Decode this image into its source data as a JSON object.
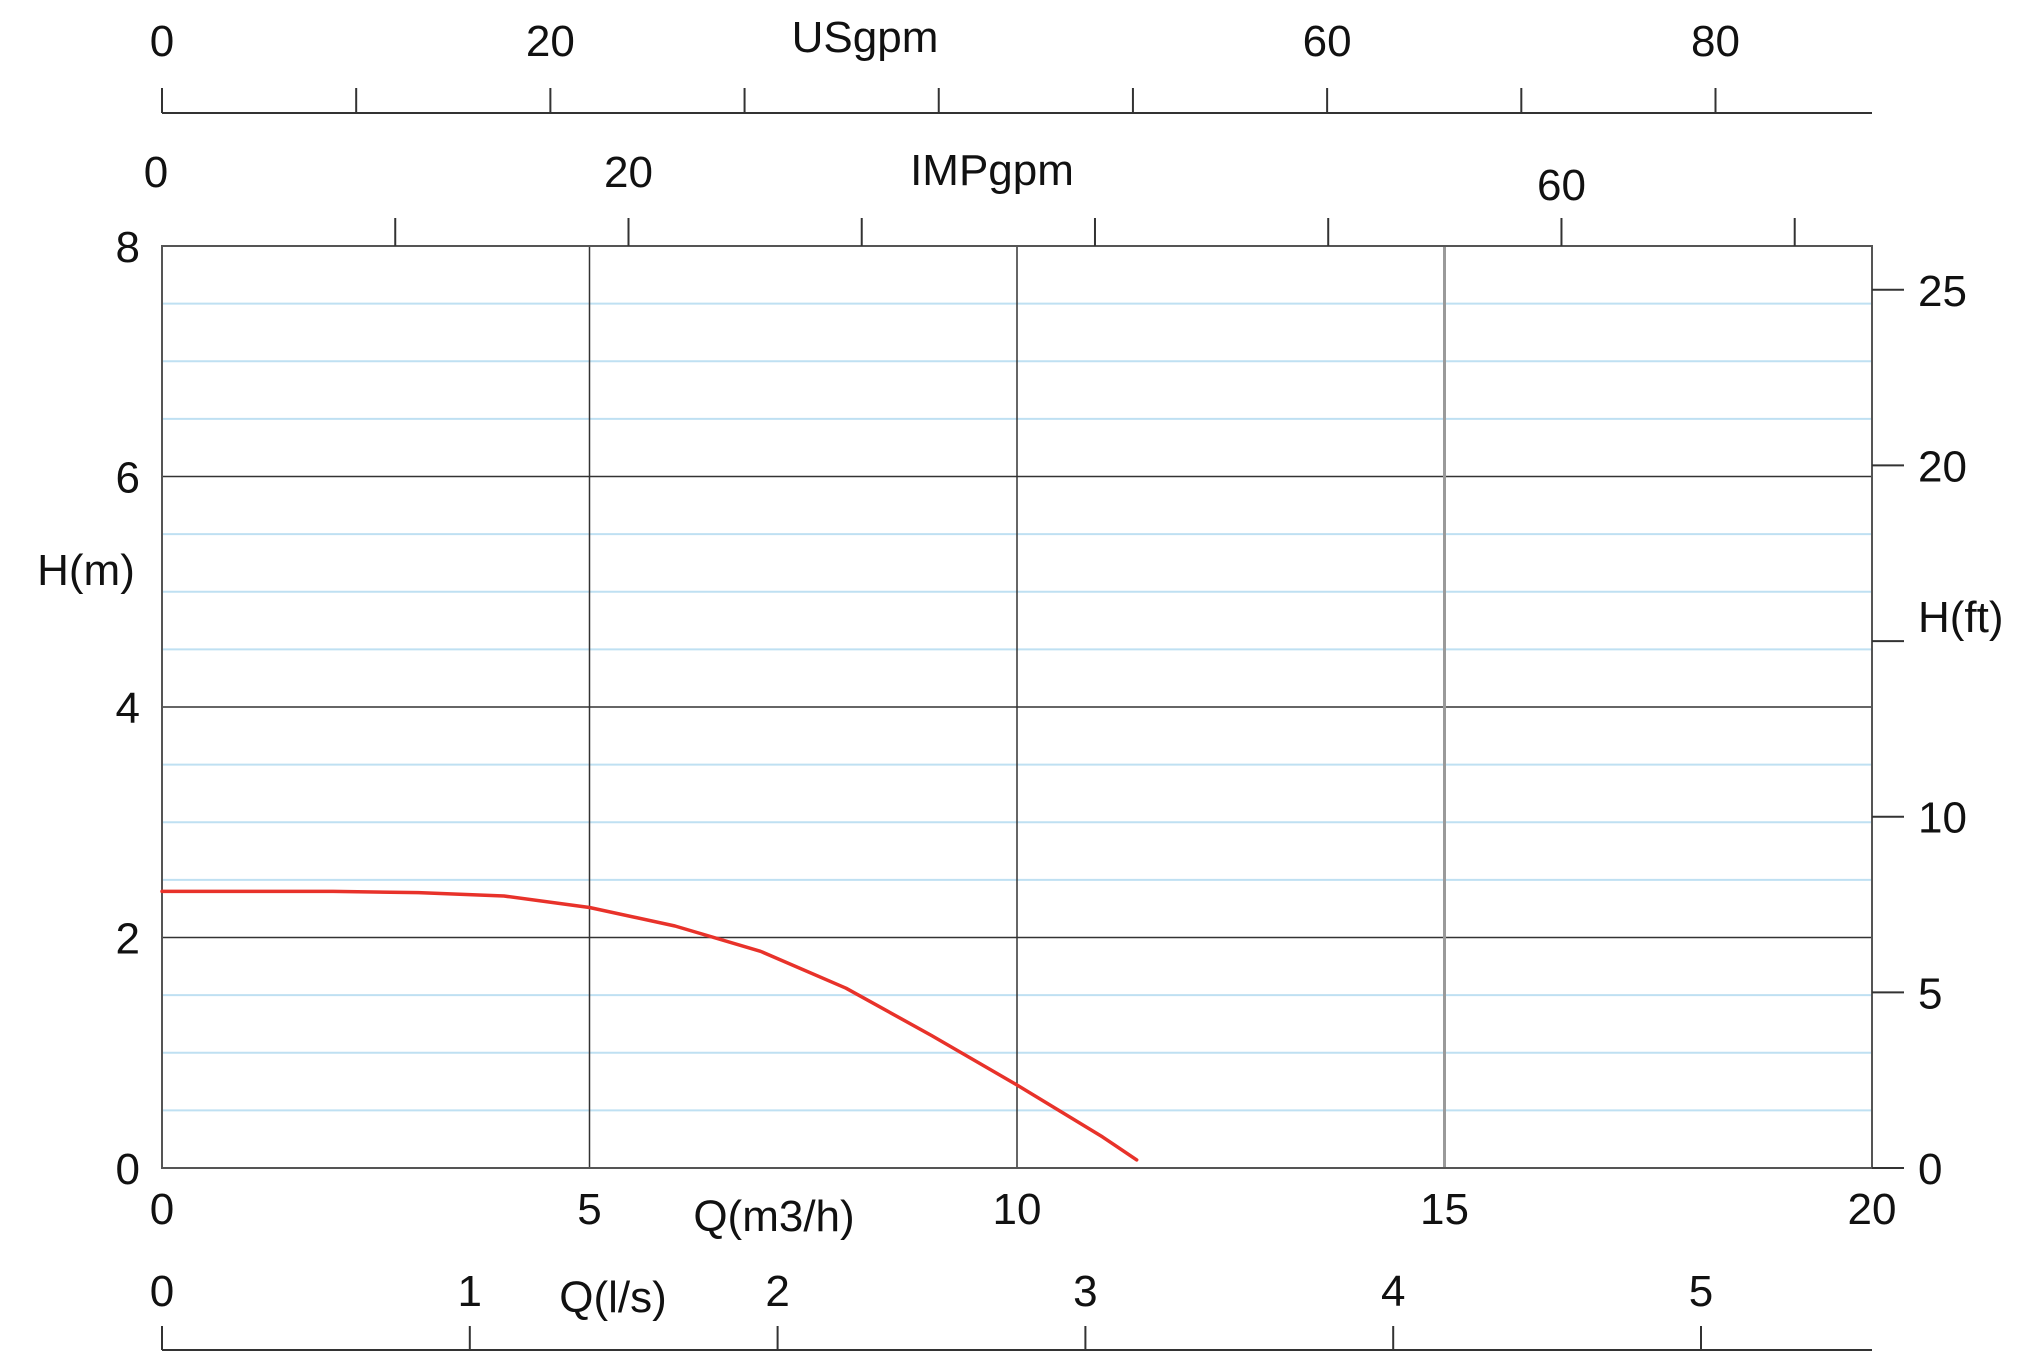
{
  "chart_data": {
    "type": "line",
    "title": "",
    "xlabel": "Q(m3/h)",
    "ylabel": "H(m)",
    "xlim": [
      0,
      20
    ],
    "ylim": [
      0,
      8
    ],
    "x_ticks": [
      0,
      5,
      10,
      15,
      20
    ],
    "y_ticks": [
      0,
      2,
      4,
      6,
      8
    ],
    "grid": true,
    "series": [
      {
        "name": "",
        "color": "#e8322a",
        "points": [
          {
            "x": 0,
            "y": 2.4
          },
          {
            "x": 1,
            "y": 2.4
          },
          {
            "x": 2,
            "y": 2.4
          },
          {
            "x": 3,
            "y": 2.39
          },
          {
            "x": 4,
            "y": 2.36
          },
          {
            "x": 5,
            "y": 2.26
          },
          {
            "x": 6,
            "y": 2.1
          },
          {
            "x": 7,
            "y": 1.88
          },
          {
            "x": 8,
            "y": 1.56
          },
          {
            "x": 9,
            "y": 1.15
          },
          {
            "x": 10,
            "y": 0.72
          },
          {
            "x": 11,
            "y": 0.27
          },
          {
            "x": 11.4,
            "y": 0.07
          }
        ]
      }
    ],
    "secondary_axes": {
      "right": {
        "label": "H(ft)",
        "ticks": [
          0,
          5,
          10,
          15,
          20,
          25
        ],
        "tick_labels": [
          "0",
          "5",
          "10",
          "",
          "20",
          "25"
        ]
      },
      "lps": {
        "label": "Q(l/s)",
        "ticks": [
          0,
          1,
          2,
          3,
          4,
          5
        ],
        "tick_labels": [
          "0",
          "1",
          "2",
          "3",
          "4",
          "5"
        ]
      },
      "imp": {
        "label": "IMPgpm",
        "major_ticks": [
          0,
          20,
          40,
          60
        ],
        "minor_ticks": [
          10,
          30,
          50,
          70
        ],
        "tick_labels": [
          "0",
          "20",
          "",
          "60"
        ]
      },
      "us": {
        "label": "USgpm",
        "major_ticks": [
          0,
          20,
          40,
          60,
          80
        ],
        "minor_ticks": [
          10,
          30,
          50,
          70
        ],
        "tick_labels": [
          "0",
          "20",
          "",
          "60",
          "80"
        ]
      }
    },
    "colors": {
      "minor_grid": "#bfe0f2",
      "major_grid": "#333333",
      "curve": "#e8322a"
    }
  }
}
